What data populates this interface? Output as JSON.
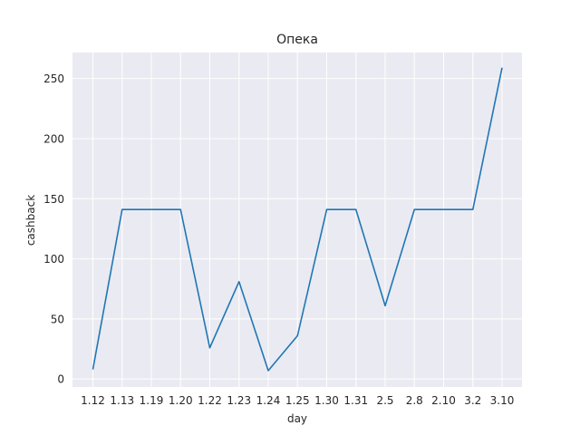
{
  "chart_data": {
    "type": "line",
    "title": "Опека",
    "xlabel": "day",
    "ylabel": "cashback",
    "categories": [
      "1.12",
      "1.13",
      "1.19",
      "1.20",
      "1.22",
      "1.23",
      "1.24",
      "1.25",
      "1.30",
      "1.31",
      "2.5",
      "2.8",
      "2.10",
      "3.2",
      "3.10"
    ],
    "series": [
      {
        "values": [
          8,
          141,
          141,
          141,
          26,
          81,
          7,
          36,
          141,
          141,
          61,
          141,
          141,
          141,
          259
        ]
      }
    ],
    "ylim": [
      -6.6,
      271.6
    ],
    "yticks": [
      0,
      50,
      100,
      150,
      200,
      250
    ],
    "grid": true,
    "legend": "none",
    "colors": {
      "background": "#eaeaf2",
      "grid": "#ffffff",
      "line": "#1f77b4",
      "text": "#262626"
    }
  }
}
